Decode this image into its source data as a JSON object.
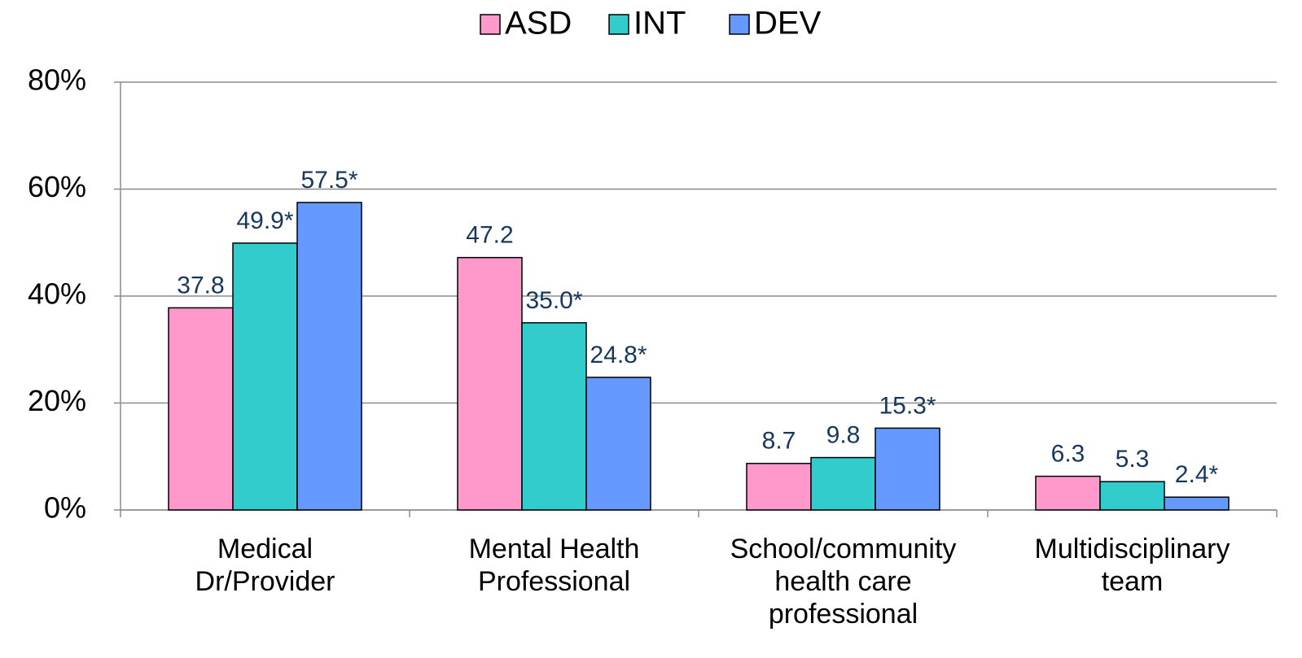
{
  "chart_data": {
    "type": "bar",
    "categories": [
      "Medical\nDr/Provider",
      "Mental Health\nProfessional",
      "School/community\nhealth care\nprofessional",
      "Multidisciplinary\nteam"
    ],
    "series": [
      {
        "name": "ASD",
        "color": "#ff99cc",
        "values": [
          37.8,
          47.2,
          8.7,
          6.3
        ],
        "value_labels": [
          "37.8",
          "47.2",
          "8.7",
          "6.3"
        ]
      },
      {
        "name": "INT",
        "color": "#33cccc",
        "values": [
          49.9,
          35.0,
          9.8,
          5.3
        ],
        "value_labels": [
          "49.9*",
          "35.0*",
          "9.8",
          "5.3"
        ]
      },
      {
        "name": "DEV",
        "color": "#6699ff",
        "values": [
          57.5,
          24.8,
          15.3,
          2.4
        ],
        "value_labels": [
          "57.5*",
          "24.8*",
          "15.3*",
          "2.4*"
        ]
      }
    ],
    "ylim": [
      0,
      80
    ],
    "yticks": [
      {
        "value": 0,
        "label": "0%"
      },
      {
        "value": 20,
        "label": "20%"
      },
      {
        "value": 40,
        "label": "40%"
      },
      {
        "value": 60,
        "label": "60%"
      },
      {
        "value": 80,
        "label": "80%"
      }
    ],
    "grid": true,
    "legend": "top"
  }
}
